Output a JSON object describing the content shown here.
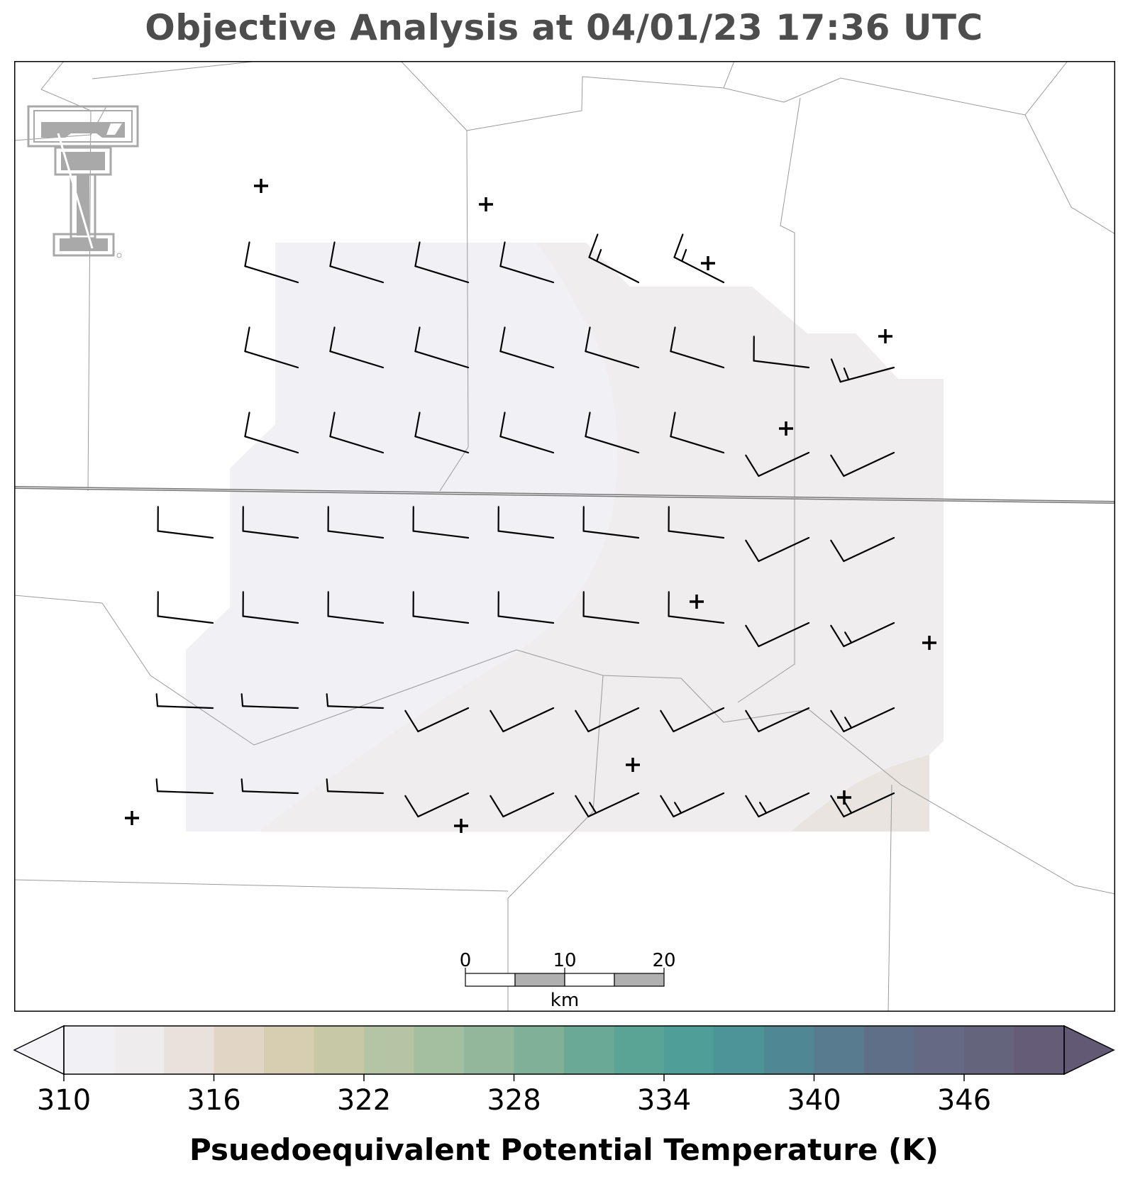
{
  "title": "Objective Analysis at 04/01/23 17:36 UTC",
  "colorbar": {
    "label": "Psuedoequivalent Potential Temperature (K)",
    "min": 310,
    "max": 350,
    "step": 2,
    "tick_labels": [
      "310",
      "316",
      "322",
      "328",
      "334",
      "340",
      "346"
    ],
    "colors": [
      "#f1f0f4",
      "#eeecec",
      "#e8e1dc",
      "#e1d5c6",
      "#d7cdb0",
      "#c7c8a5",
      "#b5c4a5",
      "#a4bfa0",
      "#93b79b",
      "#80b097",
      "#6aa995",
      "#5aa496",
      "#4f9e97",
      "#4c9497",
      "#508795",
      "#587b8f",
      "#5f6f88",
      "#646a82",
      "#65647d",
      "#655d78"
    ],
    "under_color": "#f4f3f7",
    "over_color": "#625a75"
  },
  "scale_bar": {
    "labels": [
      "0",
      "10",
      "20"
    ],
    "unit": "km"
  },
  "logo": {
    "name": "Texas Tech Double T"
  },
  "map": {
    "shading": {
      "outer_color": "#f1f1f5",
      "middle_color": "#efeded",
      "inner_color": "#e9e4df"
    },
    "station_symbol": "+",
    "wind_barbs": [
      {
        "row": 0,
        "cols": [
          1,
          2,
          3,
          4,
          5,
          6
        ],
        "style": [
          "wnw10",
          "wnw10",
          "wnw10",
          "wnw10",
          "wnw15",
          "wnw15"
        ]
      },
      {
        "row": 1,
        "cols": [
          1,
          2,
          3,
          4,
          5,
          6,
          7,
          8
        ],
        "style": [
          "wnw10",
          "wnw10",
          "wnw10",
          "wnw10",
          "wnw10",
          "wnw10",
          "w10",
          "wsw15"
        ]
      },
      {
        "row": 2,
        "cols": [
          1,
          2,
          3,
          4,
          5,
          6,
          7,
          8
        ],
        "style": [
          "wnw10",
          "wnw10",
          "wnw10",
          "wnw10",
          "wnw10",
          "wnw10",
          "sw10",
          "sw10"
        ]
      },
      {
        "row": 3,
        "cols": [
          0,
          1,
          2,
          3,
          4,
          5,
          6,
          7,
          8
        ],
        "style": [
          "w10",
          "w10",
          "w10",
          "w10",
          "w10",
          "w10",
          "w10",
          "sw10",
          "sw10"
        ]
      },
      {
        "row": 4,
        "cols": [
          0,
          1,
          2,
          3,
          4,
          5,
          6,
          7,
          8
        ],
        "style": [
          "w10",
          "w10",
          "w10",
          "w10",
          "w10",
          "w10",
          "w10",
          "sw10",
          "sw15"
        ]
      },
      {
        "row": 5,
        "cols": [
          0,
          1,
          2,
          3,
          4,
          5,
          6,
          7,
          8
        ],
        "style": [
          "w5",
          "w5",
          "w5",
          "sw10",
          "sw10",
          "sw10",
          "sw10",
          "sw10",
          "sw15"
        ]
      },
      {
        "row": 6,
        "cols": [
          0,
          1,
          2,
          3,
          4,
          5,
          6,
          7,
          8
        ],
        "style": [
          "w5",
          "w5",
          "w5",
          "sw10",
          "sw10",
          "sw15",
          "sw15",
          "sw15",
          "sw15"
        ]
      }
    ]
  }
}
